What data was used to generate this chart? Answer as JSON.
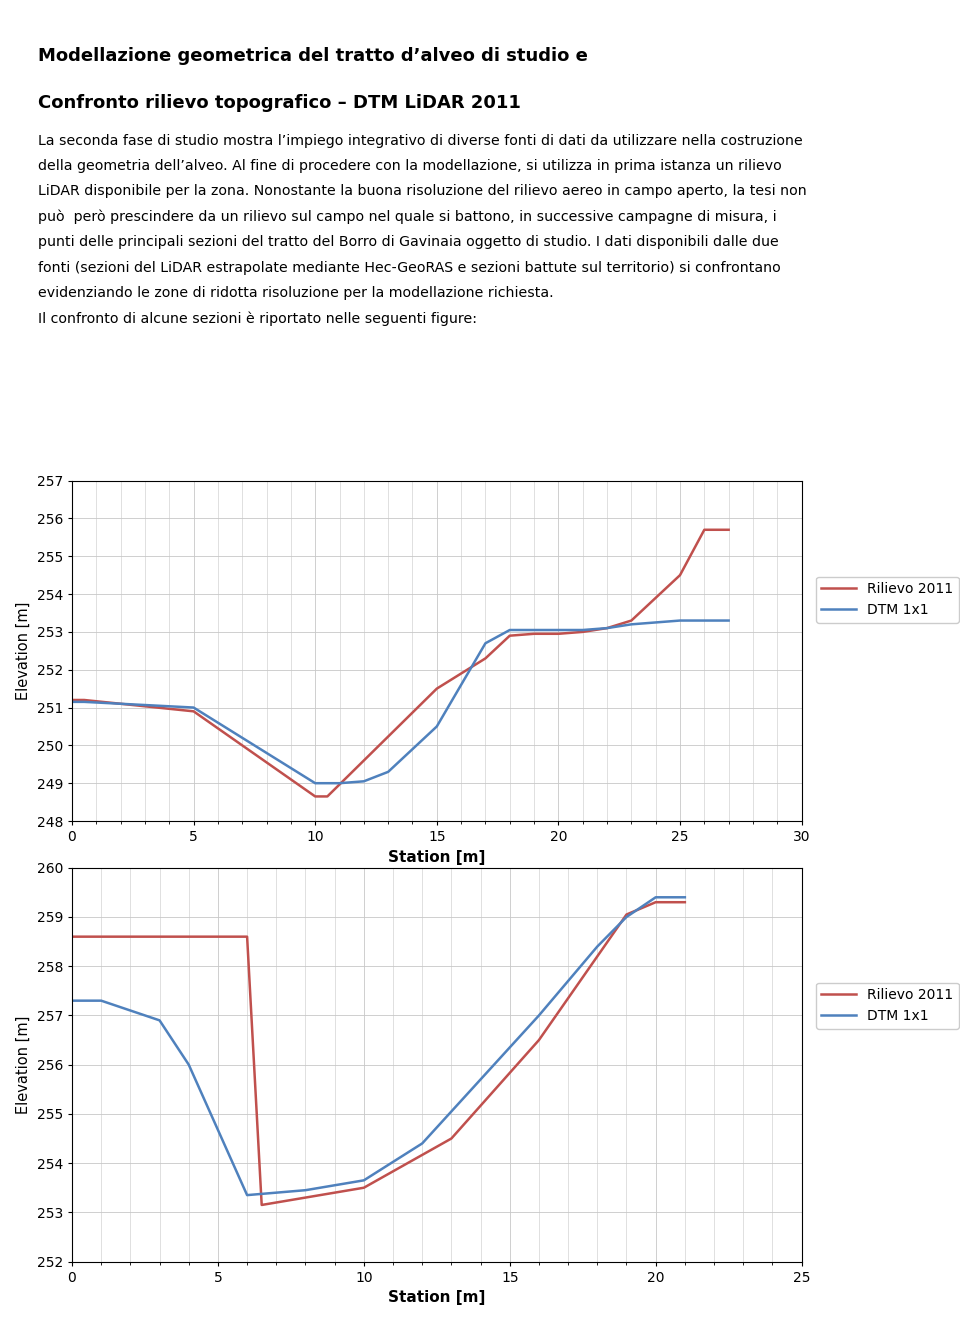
{
  "title_line1": "Modellazione geometrica del tratto d’alveo di studio e",
  "title_line2": "Confronto rilievo topografico – DTM LiDAR 2011",
  "para_lines": [
    "La seconda fase di studio mostra l’impiego integrativo di diverse fonti di dati da utilizzare nella costruzione",
    "della geometria dell’alveo. Al fine di procedere con la modellazione, si utilizza in prima istanza un rilievo",
    "LiDAR disponibile per la zona. Nonostante la buona risoluzione del rilievo aereo in campo aperto, la tesi non",
    "può  però prescindere da un rilievo sul campo nel quale si battono, in successive campagne di misura, i",
    "punti delle principali sezioni del tratto del Borro di Gavinaia oggetto di studio. I dati disponibili dalle due",
    "fonti (sezioni del LiDAR estrapolate mediante Hec-GeoRAS e sezioni battute sul territorio) si confrontano",
    "evidenziando le zone di ridotta risoluzione per la modellazione richiesta.",
    "Il confronto di alcune sezioni è riportato nelle seguenti figure:"
  ],
  "chart1": {
    "rilievo_x": [
      0,
      0.5,
      5,
      10,
      10.5,
      15,
      17,
      18,
      19,
      20,
      21,
      22,
      23,
      25,
      26,
      27
    ],
    "rilievo_y": [
      251.2,
      251.2,
      250.9,
      248.65,
      248.65,
      251.5,
      252.3,
      252.9,
      252.95,
      252.95,
      253.0,
      253.1,
      253.3,
      254.5,
      255.7,
      255.7
    ],
    "dtm_x": [
      0,
      0.5,
      5,
      10,
      11,
      12,
      13,
      15,
      17,
      18,
      19,
      20,
      21,
      22,
      23,
      25,
      27
    ],
    "dtm_y": [
      251.15,
      251.15,
      251.0,
      249.0,
      249.0,
      249.05,
      249.3,
      250.5,
      252.7,
      253.05,
      253.05,
      253.05,
      253.05,
      253.1,
      253.2,
      253.3,
      253.3
    ],
    "ylabel": "Elevation [m]",
    "xlabel": "Station [m]",
    "ylim": [
      248,
      257
    ],
    "xlim": [
      0,
      30
    ],
    "yticks": [
      248,
      249,
      250,
      251,
      252,
      253,
      254,
      255,
      256,
      257
    ],
    "xticks": [
      0,
      5,
      10,
      15,
      20,
      25,
      30
    ],
    "rilievo_color": "#c0504d",
    "dtm_color": "#4f81bd",
    "legend_rilievo": "Rilievo 2011",
    "legend_dtm": "DTM 1x1"
  },
  "chart2": {
    "rilievo_x": [
      0,
      1,
      3,
      6,
      6.5,
      7,
      8,
      10,
      13,
      16,
      18,
      19,
      20,
      21
    ],
    "rilievo_y": [
      258.6,
      258.6,
      258.6,
      258.6,
      253.15,
      253.2,
      253.3,
      253.5,
      254.5,
      256.5,
      258.2,
      259.05,
      259.3,
      259.3
    ],
    "dtm_x": [
      0,
      1,
      3,
      4,
      6,
      7,
      8,
      10,
      12,
      14,
      16,
      18,
      19,
      20,
      21
    ],
    "dtm_y": [
      257.3,
      257.3,
      256.9,
      256.0,
      253.35,
      253.4,
      253.45,
      253.65,
      254.4,
      255.7,
      257.0,
      258.4,
      259.0,
      259.4,
      259.4
    ],
    "ylabel": "Elevation [m]",
    "xlabel": "Station [m]",
    "ylim": [
      252,
      260
    ],
    "xlim": [
      0,
      25
    ],
    "yticks": [
      252,
      253,
      254,
      255,
      256,
      257,
      258,
      259,
      260
    ],
    "xticks": [
      0,
      5,
      10,
      15,
      20,
      25
    ],
    "rilievo_color": "#c0504d",
    "dtm_color": "#4f81bd",
    "legend_rilievo": "Rilievo 2011",
    "legend_dtm": "DTM 1x1"
  },
  "background_color": "#ffffff",
  "grid_color": "#c8c8c8",
  "text_color": "#000000"
}
